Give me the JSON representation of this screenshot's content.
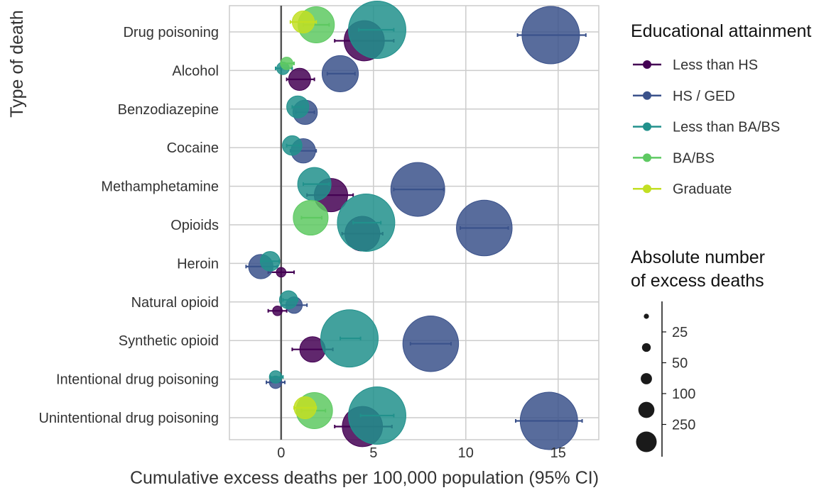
{
  "colors": {
    "less_than_hs": "#440154",
    "hs_ged": "#3b528b",
    "less_than_ba": "#21918c",
    "ba_bs": "#5ec962",
    "graduate": "#c2df23",
    "grid": "#cccccc",
    "zero_line": "#555555"
  },
  "chart_data": {
    "type": "scatter",
    "title": "",
    "xlabel": "Cumulative excess deaths per 100,000 population (95% CI)",
    "ylabel": "Type of death",
    "xlim": [
      -2.8,
      17.2
    ],
    "xticks": [
      0,
      5,
      10,
      15
    ],
    "grid": true,
    "categories": [
      "Drug poisoning",
      "Alcohol",
      "Benzodiazepine",
      "Cocaine",
      "Methamphetamine",
      "Opioids",
      "Heroin",
      "Natural opioid",
      "Synthetic opioid",
      "Intentional drug poisoning",
      "Unintentional drug poisoning"
    ],
    "series": [
      {
        "name": "Less than HS",
        "color": "#440154",
        "points": [
          {
            "category": "Drug poisoning",
            "x": 4.5,
            "lo": 2.9,
            "hi": 6.1,
            "deaths": 150
          },
          {
            "category": "Alcohol",
            "x": 1.0,
            "lo": 0.3,
            "hi": 1.8,
            "deaths": 40
          },
          {
            "category": "Methamphetamine",
            "x": 2.7,
            "lo": 1.4,
            "hi": 3.9,
            "deaths": 100
          },
          {
            "category": "Opioids",
            "x": 4.4,
            "lo": 3.3,
            "hi": 5.5,
            "deaths": 110
          },
          {
            "category": "Heroin",
            "x": 0.0,
            "lo": -0.7,
            "hi": 0.7,
            "deaths": 5
          },
          {
            "category": "Natural opioid",
            "x": -0.2,
            "lo": -0.7,
            "hi": 0.3,
            "deaths": 5
          },
          {
            "category": "Synthetic opioid",
            "x": 1.7,
            "lo": 0.6,
            "hi": 2.8,
            "deaths": 55
          },
          {
            "category": "Unintentional drug poisoning",
            "x": 4.4,
            "lo": 2.9,
            "hi": 6.0,
            "deaths": 150
          }
        ]
      },
      {
        "name": "HS / GED",
        "color": "#3b528b",
        "points": [
          {
            "category": "Drug poisoning",
            "x": 14.6,
            "lo": 12.8,
            "hi": 16.5,
            "deaths": 320
          },
          {
            "category": "Alcohol",
            "x": 3.2,
            "lo": 2.5,
            "hi": 4.0,
            "deaths": 120
          },
          {
            "category": "Benzodiazepine",
            "x": 1.3,
            "lo": 0.8,
            "hi": 1.8,
            "deaths": 50
          },
          {
            "category": "Cocaine",
            "x": 1.2,
            "lo": 0.5,
            "hi": 1.9,
            "deaths": 50
          },
          {
            "category": "Methamphetamine",
            "x": 7.4,
            "lo": 6.1,
            "hi": 8.8,
            "deaths": 280
          },
          {
            "category": "Opioids",
            "x": 11.0,
            "lo": 9.7,
            "hi": 12.3,
            "deaths": 300
          },
          {
            "category": "Heroin",
            "x": -1.1,
            "lo": -1.9,
            "hi": -0.2,
            "deaths": 50
          },
          {
            "category": "Natural opioid",
            "x": 0.7,
            "lo": 0.0,
            "hi": 1.4,
            "deaths": 20
          },
          {
            "category": "Synthetic opioid",
            "x": 8.1,
            "lo": 7.0,
            "hi": 9.2,
            "deaths": 300
          },
          {
            "category": "Intentional drug poisoning",
            "x": -0.3,
            "lo": -0.8,
            "hi": 0.2,
            "deaths": 10
          },
          {
            "category": "Unintentional drug poisoning",
            "x": 14.5,
            "lo": 12.7,
            "hi": 16.3,
            "deaths": 320
          }
        ]
      },
      {
        "name": "Less than BA/BS",
        "color": "#21918c",
        "points": [
          {
            "category": "Drug poisoning",
            "x": 5.2,
            "lo": 4.2,
            "hi": 6.1,
            "deaths": 320
          },
          {
            "category": "Alcohol",
            "x": 0.1,
            "lo": -0.3,
            "hi": 0.6,
            "deaths": 10
          },
          {
            "category": "Benzodiazepine",
            "x": 0.9,
            "lo": 0.6,
            "hi": 1.2,
            "deaths": 40
          },
          {
            "category": "Cocaine",
            "x": 0.6,
            "lo": 0.3,
            "hi": 1.0,
            "deaths": 30
          },
          {
            "category": "Methamphetamine",
            "x": 1.8,
            "lo": 1.2,
            "hi": 2.6,
            "deaths": 100
          },
          {
            "category": "Opioids",
            "x": 4.6,
            "lo": 3.9,
            "hi": 5.4,
            "deaths": 320
          },
          {
            "category": "Heroin",
            "x": -0.6,
            "lo": -1.1,
            "hi": -0.1,
            "deaths": 30
          },
          {
            "category": "Natural opioid",
            "x": 0.4,
            "lo": 0.1,
            "hi": 0.9,
            "deaths": 25
          },
          {
            "category": "Synthetic opioid",
            "x": 3.7,
            "lo": 3.2,
            "hi": 4.3,
            "deaths": 320
          },
          {
            "category": "Intentional drug poisoning",
            "x": -0.3,
            "lo": -0.6,
            "hi": 0.1,
            "deaths": 10
          },
          {
            "category": "Unintentional drug poisoning",
            "x": 5.2,
            "lo": 4.3,
            "hi": 6.1,
            "deaths": 320
          }
        ]
      },
      {
        "name": "BA/BS",
        "color": "#5ec962",
        "points": [
          {
            "category": "Drug poisoning",
            "x": 1.9,
            "lo": 1.2,
            "hi": 2.6,
            "deaths": 120
          },
          {
            "category": "Alcohol",
            "x": 0.3,
            "lo": 0.0,
            "hi": 0.7,
            "deaths": 10
          },
          {
            "category": "Opioids",
            "x": 1.6,
            "lo": 1.1,
            "hi": 2.2,
            "deaths": 110
          },
          {
            "category": "Unintentional drug poisoning",
            "x": 1.8,
            "lo": 1.1,
            "hi": 2.4,
            "deaths": 120
          }
        ]
      },
      {
        "name": "Graduate",
        "color": "#c2df23",
        "points": [
          {
            "category": "Drug poisoning",
            "x": 1.2,
            "lo": 0.5,
            "hi": 1.9,
            "deaths": 40
          },
          {
            "category": "Unintentional drug poisoning",
            "x": 1.3,
            "lo": 0.7,
            "hi": 1.9,
            "deaths": 40
          }
        ]
      }
    ],
    "legend": {
      "color_title": "Educational attainment",
      "size_title_line1": "Absolute number",
      "size_title_line2": "of excess deaths",
      "size_labels": [
        "25",
        "50",
        "100",
        "250"
      ],
      "size_values": [
        25,
        50,
        100,
        250,
        450
      ],
      "placement": "right"
    }
  }
}
